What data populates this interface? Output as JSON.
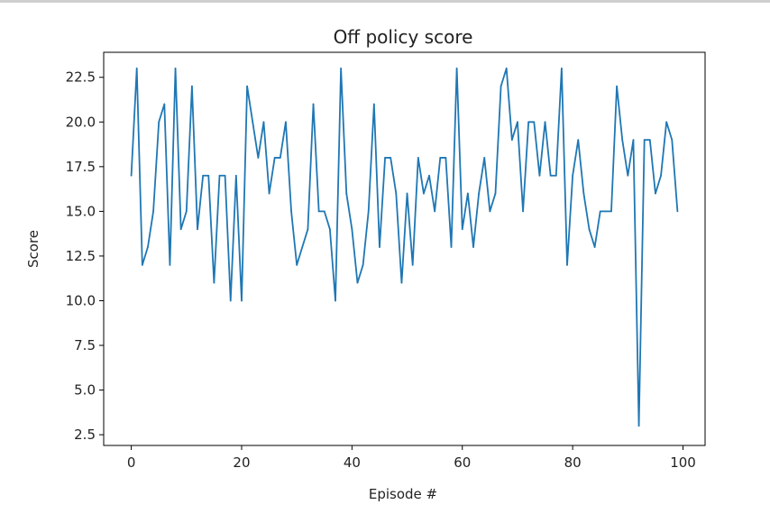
{
  "chart_data": {
    "type": "line",
    "title": "Off policy score",
    "xlabel": "Episode #",
    "ylabel": "Score",
    "xlim": [
      -5,
      104
    ],
    "ylim": [
      1.9,
      23.9
    ],
    "x_ticks": [
      0,
      20,
      40,
      60,
      80,
      100
    ],
    "y_ticks": [
      2.5,
      5.0,
      7.5,
      10.0,
      12.5,
      15.0,
      17.5,
      20.0,
      22.5
    ],
    "grid": false,
    "color": "#1f77b4",
    "series": [
      {
        "values": [
          17,
          23,
          12,
          13,
          15,
          20,
          21,
          12,
          23,
          14,
          15,
          22,
          14,
          17,
          17,
          11,
          17,
          17,
          10,
          17,
          10,
          22,
          20,
          18,
          20,
          16,
          18,
          18,
          20,
          15,
          12,
          13,
          14,
          21,
          15,
          15,
          14,
          10,
          23,
          16,
          14,
          11,
          12,
          15,
          21,
          13,
          18,
          18,
          16,
          11,
          16,
          12,
          18,
          16,
          17,
          15,
          18,
          18,
          13,
          23,
          14,
          16,
          13,
          16,
          18,
          15,
          16,
          22,
          23,
          19,
          20,
          15,
          20,
          20,
          17,
          20,
          17,
          17,
          23,
          12,
          17,
          19,
          16,
          14,
          13,
          15,
          15,
          15,
          22,
          19,
          17,
          19,
          3,
          19,
          19,
          16,
          17,
          20,
          19,
          15
        ]
      }
    ]
  }
}
